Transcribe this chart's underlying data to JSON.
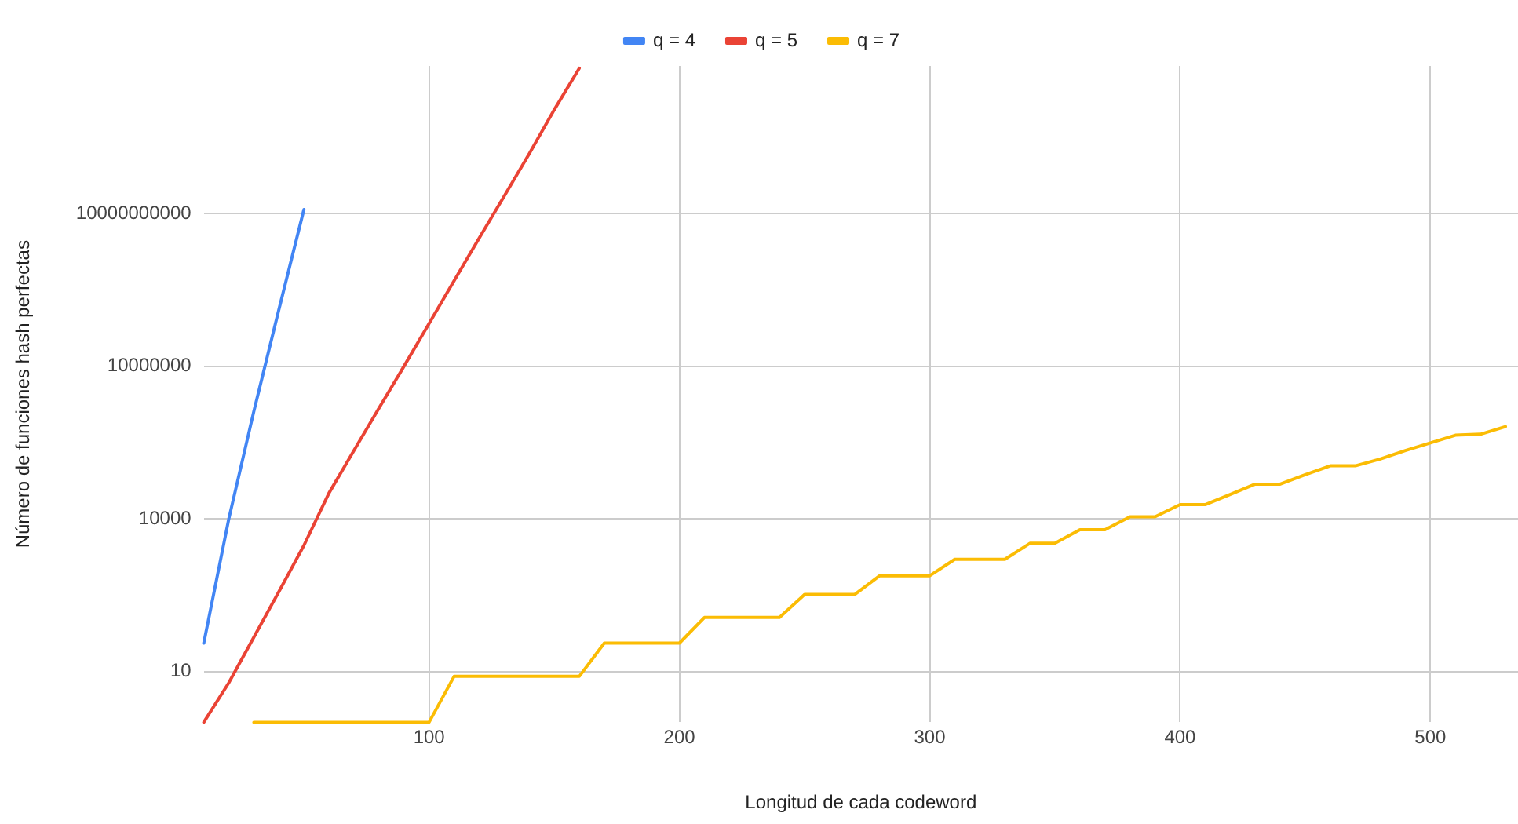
{
  "chart_data": {
    "type": "line",
    "xlabel": "Longitud de cada codeword",
    "ylabel": "Número de funciones hash perfectas",
    "log": "y",
    "grid": true,
    "legend": "top",
    "marker": "none",
    "line_style": "solid",
    "xlim": [
      10,
      535
    ],
    "xticks": [
      100,
      200,
      300,
      400,
      500
    ],
    "ylim": [
      1,
      8000000000000
    ],
    "yticks": [
      10,
      10000,
      10000000,
      10000000000
    ],
    "series": [
      {
        "name": "q = 4",
        "color": "#4285f4",
        "x": [
          10,
          20,
          30,
          40,
          50
        ],
        "values": [
          36,
          10000,
          1300000,
          130000000,
          12000000000
        ]
      },
      {
        "name": "q = 5",
        "color": "#ea4335",
        "x": [
          10,
          20,
          30,
          40,
          50,
          60,
          70,
          80,
          90,
          100,
          110,
          120,
          130,
          140,
          150,
          160
        ],
        "values": [
          1,
          6,
          47,
          370,
          3000,
          32000,
          220000,
          1500000,
          10000000,
          69000000,
          480000000,
          3300000000,
          22000000000,
          150000000000,
          1100000000000,
          7200000000000
        ]
      },
      {
        "name": "q = 7",
        "color": "#fbbc04",
        "x": [
          30,
          40,
          50,
          60,
          70,
          80,
          90,
          100,
          110,
          120,
          130,
          140,
          150,
          160,
          170,
          180,
          190,
          200,
          210,
          220,
          230,
          240,
          250,
          260,
          270,
          280,
          290,
          300,
          310,
          320,
          330,
          340,
          350,
          360,
          370,
          380,
          390,
          400,
          410,
          420,
          430,
          440,
          450,
          460,
          470,
          480,
          490,
          500,
          510,
          520,
          530
        ],
        "values": [
          1,
          1,
          1,
          1,
          1,
          1,
          1,
          1,
          8,
          8,
          8,
          8,
          8,
          8,
          36,
          36,
          36,
          36,
          115,
          115,
          115,
          115,
          325,
          325,
          325,
          760,
          760,
          760,
          1600,
          1600,
          1600,
          3300,
          3300,
          6100,
          6100,
          11000,
          11000,
          19000,
          19000,
          30000,
          48000,
          48000,
          74000,
          110000,
          110000,
          150000,
          220000,
          310000,
          440000,
          460000,
          650000
        ]
      }
    ]
  }
}
